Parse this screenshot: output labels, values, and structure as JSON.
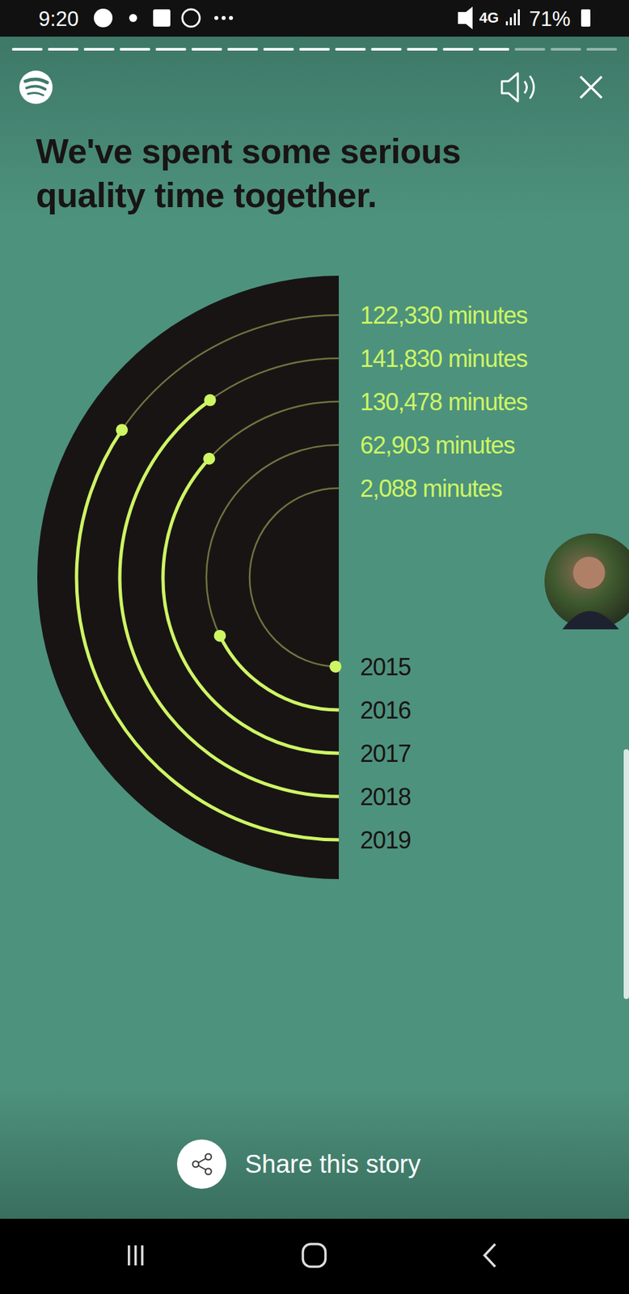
{
  "status_bar": {
    "time": "9:20",
    "network": "4G",
    "battery": "71%"
  },
  "chart_data": {
    "type": "radial_bar",
    "title": "We've spent some serious quality time together.",
    "categories": [
      "2015",
      "2016",
      "2017",
      "2018",
      "2019"
    ],
    "values": [
      2088,
      62903,
      130478,
      141830,
      122330
    ],
    "value_labels": [
      "2,088 minutes",
      "62,903 minutes",
      "130,478 minutes",
      "141,830 minutes",
      "122,330 minutes"
    ],
    "ylim": [
      0,
      177300
    ],
    "data_labels": true,
    "color": "#cdf564"
  },
  "share_label": "Share this story"
}
